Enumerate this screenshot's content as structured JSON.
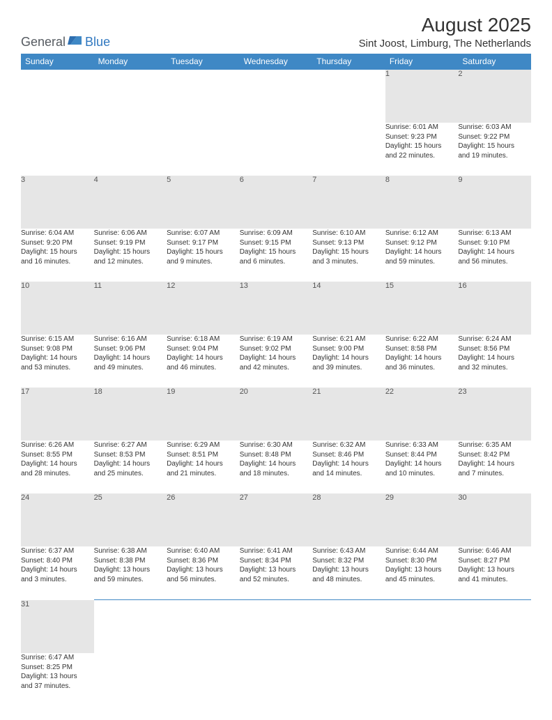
{
  "logo": {
    "general": "General",
    "blue": "Blue"
  },
  "header": {
    "title": "August 2025",
    "location": "Sint Joost, Limburg, The Netherlands"
  },
  "colors": {
    "header_bg": "#3f88c5",
    "header_text": "#ffffff",
    "daynum_bg": "#e6e6e6",
    "daynum_text": "#555555",
    "body_text": "#333333",
    "logo_gray": "#555a60",
    "logo_blue": "#3078c0",
    "row_border": "#3f88c5"
  },
  "weekdays": [
    "Sunday",
    "Monday",
    "Tuesday",
    "Wednesday",
    "Thursday",
    "Friday",
    "Saturday"
  ],
  "weeks": [
    [
      null,
      null,
      null,
      null,
      null,
      {
        "n": "1",
        "sr": "Sunrise: 6:01 AM",
        "ss": "Sunset: 9:23 PM",
        "dl1": "Daylight: 15 hours",
        "dl2": "and 22 minutes."
      },
      {
        "n": "2",
        "sr": "Sunrise: 6:03 AM",
        "ss": "Sunset: 9:22 PM",
        "dl1": "Daylight: 15 hours",
        "dl2": "and 19 minutes."
      }
    ],
    [
      {
        "n": "3",
        "sr": "Sunrise: 6:04 AM",
        "ss": "Sunset: 9:20 PM",
        "dl1": "Daylight: 15 hours",
        "dl2": "and 16 minutes."
      },
      {
        "n": "4",
        "sr": "Sunrise: 6:06 AM",
        "ss": "Sunset: 9:19 PM",
        "dl1": "Daylight: 15 hours",
        "dl2": "and 12 minutes."
      },
      {
        "n": "5",
        "sr": "Sunrise: 6:07 AM",
        "ss": "Sunset: 9:17 PM",
        "dl1": "Daylight: 15 hours",
        "dl2": "and 9 minutes."
      },
      {
        "n": "6",
        "sr": "Sunrise: 6:09 AM",
        "ss": "Sunset: 9:15 PM",
        "dl1": "Daylight: 15 hours",
        "dl2": "and 6 minutes."
      },
      {
        "n": "7",
        "sr": "Sunrise: 6:10 AM",
        "ss": "Sunset: 9:13 PM",
        "dl1": "Daylight: 15 hours",
        "dl2": "and 3 minutes."
      },
      {
        "n": "8",
        "sr": "Sunrise: 6:12 AM",
        "ss": "Sunset: 9:12 PM",
        "dl1": "Daylight: 14 hours",
        "dl2": "and 59 minutes."
      },
      {
        "n": "9",
        "sr": "Sunrise: 6:13 AM",
        "ss": "Sunset: 9:10 PM",
        "dl1": "Daylight: 14 hours",
        "dl2": "and 56 minutes."
      }
    ],
    [
      {
        "n": "10",
        "sr": "Sunrise: 6:15 AM",
        "ss": "Sunset: 9:08 PM",
        "dl1": "Daylight: 14 hours",
        "dl2": "and 53 minutes."
      },
      {
        "n": "11",
        "sr": "Sunrise: 6:16 AM",
        "ss": "Sunset: 9:06 PM",
        "dl1": "Daylight: 14 hours",
        "dl2": "and 49 minutes."
      },
      {
        "n": "12",
        "sr": "Sunrise: 6:18 AM",
        "ss": "Sunset: 9:04 PM",
        "dl1": "Daylight: 14 hours",
        "dl2": "and 46 minutes."
      },
      {
        "n": "13",
        "sr": "Sunrise: 6:19 AM",
        "ss": "Sunset: 9:02 PM",
        "dl1": "Daylight: 14 hours",
        "dl2": "and 42 minutes."
      },
      {
        "n": "14",
        "sr": "Sunrise: 6:21 AM",
        "ss": "Sunset: 9:00 PM",
        "dl1": "Daylight: 14 hours",
        "dl2": "and 39 minutes."
      },
      {
        "n": "15",
        "sr": "Sunrise: 6:22 AM",
        "ss": "Sunset: 8:58 PM",
        "dl1": "Daylight: 14 hours",
        "dl2": "and 36 minutes."
      },
      {
        "n": "16",
        "sr": "Sunrise: 6:24 AM",
        "ss": "Sunset: 8:56 PM",
        "dl1": "Daylight: 14 hours",
        "dl2": "and 32 minutes."
      }
    ],
    [
      {
        "n": "17",
        "sr": "Sunrise: 6:26 AM",
        "ss": "Sunset: 8:55 PM",
        "dl1": "Daylight: 14 hours",
        "dl2": "and 28 minutes."
      },
      {
        "n": "18",
        "sr": "Sunrise: 6:27 AM",
        "ss": "Sunset: 8:53 PM",
        "dl1": "Daylight: 14 hours",
        "dl2": "and 25 minutes."
      },
      {
        "n": "19",
        "sr": "Sunrise: 6:29 AM",
        "ss": "Sunset: 8:51 PM",
        "dl1": "Daylight: 14 hours",
        "dl2": "and 21 minutes."
      },
      {
        "n": "20",
        "sr": "Sunrise: 6:30 AM",
        "ss": "Sunset: 8:48 PM",
        "dl1": "Daylight: 14 hours",
        "dl2": "and 18 minutes."
      },
      {
        "n": "21",
        "sr": "Sunrise: 6:32 AM",
        "ss": "Sunset: 8:46 PM",
        "dl1": "Daylight: 14 hours",
        "dl2": "and 14 minutes."
      },
      {
        "n": "22",
        "sr": "Sunrise: 6:33 AM",
        "ss": "Sunset: 8:44 PM",
        "dl1": "Daylight: 14 hours",
        "dl2": "and 10 minutes."
      },
      {
        "n": "23",
        "sr": "Sunrise: 6:35 AM",
        "ss": "Sunset: 8:42 PM",
        "dl1": "Daylight: 14 hours",
        "dl2": "and 7 minutes."
      }
    ],
    [
      {
        "n": "24",
        "sr": "Sunrise: 6:37 AM",
        "ss": "Sunset: 8:40 PM",
        "dl1": "Daylight: 14 hours",
        "dl2": "and 3 minutes."
      },
      {
        "n": "25",
        "sr": "Sunrise: 6:38 AM",
        "ss": "Sunset: 8:38 PM",
        "dl1": "Daylight: 13 hours",
        "dl2": "and 59 minutes."
      },
      {
        "n": "26",
        "sr": "Sunrise: 6:40 AM",
        "ss": "Sunset: 8:36 PM",
        "dl1": "Daylight: 13 hours",
        "dl2": "and 56 minutes."
      },
      {
        "n": "27",
        "sr": "Sunrise: 6:41 AM",
        "ss": "Sunset: 8:34 PM",
        "dl1": "Daylight: 13 hours",
        "dl2": "and 52 minutes."
      },
      {
        "n": "28",
        "sr": "Sunrise: 6:43 AM",
        "ss": "Sunset: 8:32 PM",
        "dl1": "Daylight: 13 hours",
        "dl2": "and 48 minutes."
      },
      {
        "n": "29",
        "sr": "Sunrise: 6:44 AM",
        "ss": "Sunset: 8:30 PM",
        "dl1": "Daylight: 13 hours",
        "dl2": "and 45 minutes."
      },
      {
        "n": "30",
        "sr": "Sunrise: 6:46 AM",
        "ss": "Sunset: 8:27 PM",
        "dl1": "Daylight: 13 hours",
        "dl2": "and 41 minutes."
      }
    ],
    [
      {
        "n": "31",
        "sr": "Sunrise: 6:47 AM",
        "ss": "Sunset: 8:25 PM",
        "dl1": "Daylight: 13 hours",
        "dl2": "and 37 minutes."
      },
      null,
      null,
      null,
      null,
      null,
      null
    ]
  ]
}
